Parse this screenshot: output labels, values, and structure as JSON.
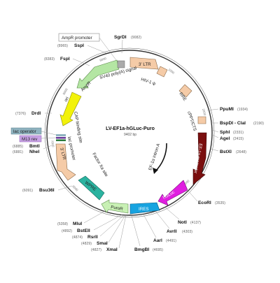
{
  "plasmid": {
    "name": "LV-EF1a-hGLuc-Puro",
    "size": "9402 bp"
  },
  "ticks": [
    "1000",
    "2000",
    "3000",
    "4000",
    "5000",
    "6000",
    "7000",
    "8000",
    "9000"
  ],
  "features": {
    "ltr3_top": "3' LTR",
    "hiv": "HIV-1 ψ",
    "rre": "RRE",
    "cppt": "cPPT/CTS",
    "ef1a_promoter": "EF-1α promoter",
    "ef1a_intron": "EF-1α intron A",
    "hgluc": "hGLuc",
    "ires": "IRES",
    "puror": "PuroR",
    "wpre": "WPRE",
    "factor_xa": "Factor Xa site",
    "ltr3_left": "3' LTR",
    "lac_promoter": "lac promoter",
    "cap_site": "CAP binding site",
    "ori": "ori",
    "ampr": "AmpR",
    "sv40": "SV40 poly(A) signal",
    "ampr_promoter": "AmpR promoter",
    "lac_operator": "lac operator",
    "m13_rev": "M13 rev"
  },
  "sites": {
    "sgrdi": {
      "name": "SgrDI",
      "pos": "(9082)"
    },
    "sspi": {
      "name": "SspI",
      "pos": "(8965)"
    },
    "fspi": {
      "name": "FspI",
      "pos": "(8383)"
    },
    "drdi": {
      "name": "DrdI",
      "pos": "(7376)"
    },
    "bmti": {
      "name": "BmtI",
      "pos": "(6885)"
    },
    "nhei": {
      "name": "NheI",
      "pos": "(6881)"
    },
    "bsu36i": {
      "name": "Bsu36I",
      "pos": "(6091)"
    },
    "mlui": {
      "name": "MluI",
      "pos": "(5358)"
    },
    "bsteii": {
      "name": "BstEII",
      "pos": "(4892)"
    },
    "rsrii": {
      "name": "RsrII",
      "pos": "(4874)"
    },
    "smai": {
      "name": "SmaI",
      "pos": "(4829)"
    },
    "xmai": {
      "name": "XmaI",
      "pos": "(4827)"
    },
    "bmgbi": {
      "name": "BmgBI",
      "pos": "(4695)"
    },
    "aari": {
      "name": "AarI",
      "pos": "(4491)"
    },
    "avrii": {
      "name": "AvrII",
      "pos": "(4303)"
    },
    "noti": {
      "name": "NotI",
      "pos": "(4137)"
    },
    "ecori": {
      "name": "EcoRI",
      "pos": "(3535)"
    },
    "ppumi": {
      "name": "PpuMI",
      "pos": "(1934)"
    },
    "bspdi": {
      "name": "BspDI - ClaI",
      "pos": "(2190)"
    },
    "sphi": {
      "name": "SphI",
      "pos": "(2331)"
    },
    "agei": {
      "name": "AgeI",
      "pos": "(2415)"
    },
    "bstxi": {
      "name": "BstXI",
      "pos": "(2648)"
    }
  },
  "colors": {
    "backbone": "#333333",
    "ltr": "#f5cba7",
    "ampr": "#b4e6a3",
    "ori": "#f2f20a",
    "ef1a_promoter": "#7a0f0f",
    "hgluc": "#e01ee0",
    "ires": "#17a3e0",
    "puror": "#c8f0b4",
    "wpre": "#2bb3a0",
    "grey_box": "#aaaaaa",
    "lac_operator_bg": "#8fb3c0",
    "m13_bg": "#c9a3e6"
  }
}
